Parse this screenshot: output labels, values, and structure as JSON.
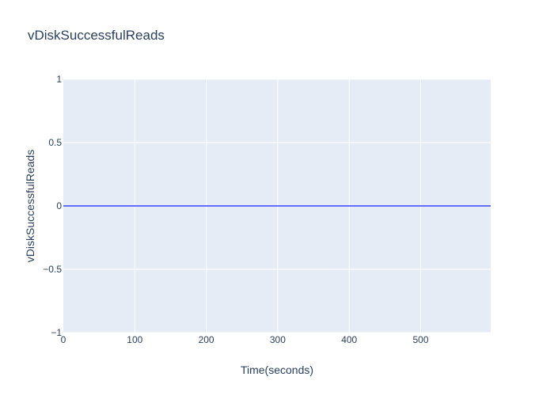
{
  "chart_data": {
    "type": "line",
    "title": "vDiskSuccessfulReads",
    "xlabel": "Time(seconds)",
    "ylabel": "vDiskSuccessfulReads",
    "xlim": [
      0,
      598
    ],
    "ylim": [
      -1,
      1
    ],
    "x_ticks": [
      0,
      100,
      200,
      300,
      400,
      500
    ],
    "x_tick_labels": [
      "0",
      "100",
      "200",
      "300",
      "400",
      "500"
    ],
    "y_ticks": [
      1,
      0.5,
      0,
      -0.5,
      -1
    ],
    "y_tick_labels": [
      "1",
      "0.5",
      "0",
      "−0.5",
      "−1"
    ],
    "grid": true,
    "legend": "none",
    "series": [
      {
        "color": "#636efa",
        "x": [
          0,
          100,
          200,
          300,
          400,
          500,
          598
        ],
        "y": [
          0,
          0,
          0,
          0,
          0,
          0,
          0
        ]
      }
    ],
    "colors": {
      "plot_background": "#e5ecf6",
      "grid": "#ffffff",
      "text": "#2a3f5f"
    }
  }
}
